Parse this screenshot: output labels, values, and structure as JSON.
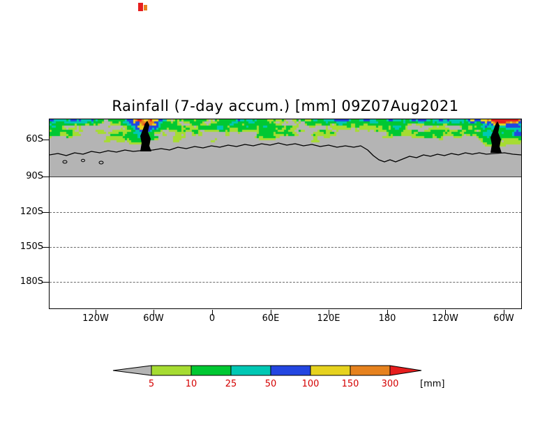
{
  "title": "Rainfall (7-day accum.) [mm] 09Z07Aug2021",
  "axes": {
    "y_ticks": [
      "60S",
      "90S",
      "120S",
      "150S",
      "180S"
    ],
    "x_ticks": [
      "120W",
      "60W",
      "0",
      "60E",
      "120E",
      "180",
      "120W",
      "60W"
    ]
  },
  "colorbar": {
    "labels": [
      "5",
      "10",
      "25",
      "50",
      "100",
      "150",
      "300"
    ],
    "unit": "[mm]",
    "label_color": "#d40000",
    "colors": [
      "#b4b4b4",
      "#a6dc32",
      "#00c832",
      "#00c8b4",
      "#2346e1",
      "#e6d21e",
      "#e6821e",
      "#e61e1e"
    ]
  },
  "map": {
    "no_data_color": "#b4b4b4",
    "background_color": "#ffffff",
    "coastline_color": "#000000"
  },
  "chart_data": {
    "type": "heatmap",
    "title": "Rainfall (7-day accum.) [mm] 09Z07Aug2021",
    "variable": "Rainfall",
    "accumulation": "7-day accum.",
    "unit": "mm",
    "valid_time": "09Z07Aug2021",
    "x_tick_labels": [
      "120W",
      "60W",
      "0",
      "60E",
      "120E",
      "180",
      "120W",
      "60W"
    ],
    "y_tick_labels": [
      "60S",
      "90S",
      "120S",
      "150S",
      "180S"
    ],
    "color_levels": [
      5,
      10,
      25,
      50,
      100,
      150,
      300
    ],
    "level_colors": [
      "#b4b4b4",
      "#a6dc32",
      "#00c832",
      "#00c8b4",
      "#2346e1",
      "#e6d21e",
      "#e6821e",
      "#e61e1e"
    ],
    "legend_position": "bottom",
    "description": "Mottled accumulated-rainfall shading (green/cyan/blue with sparse yellow-orange-red near the Antarctic Peninsula longitudes) fills the band at the top of the panel near 60S; solid gray denotes sub-5mm / no-rain area down to the 90S line; below 90S the panel is blank white with dashed gridlines at 120S, 150S and 180S. Black Antarctic coastline and peninsula drawn across the gray band."
  }
}
